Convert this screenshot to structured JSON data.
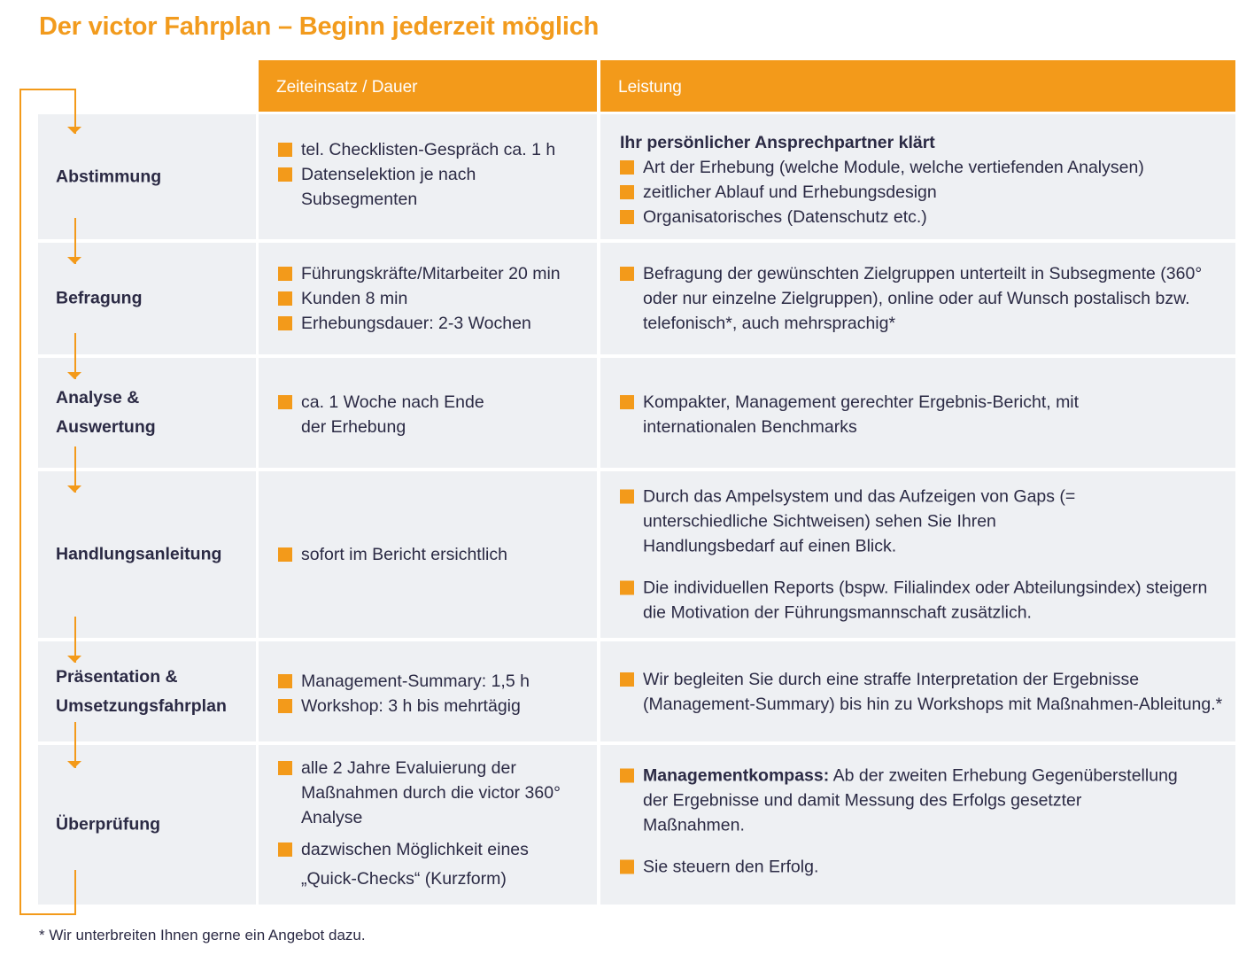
{
  "title": "Der victor Fahrplan – Beginn jederzeit möglich",
  "header": {
    "time": "Zeiteinsatz / Dauer",
    "performance": "Leistung"
  },
  "rows": [
    {
      "step": "Abstimmung",
      "time": [
        "tel. Checklisten-Gespräch ca. 1 h",
        "Datenselektion je nach Subsegmenten"
      ],
      "perf_lead": "Ihr persönlicher Ansprechpartner klärt",
      "perf": [
        "Art der Erhebung (welche Module, welche vertiefenden Analysen)",
        "zeitlicher Ablauf und Erhebungsdesign",
        "Organisatorisches (Datenschutz etc.)"
      ]
    },
    {
      "step": "Befragung",
      "time": [
        "Führungskräfte/Mitarbeiter 20 min",
        "Kunden 8 min",
        "Erhebungsdauer: 2-3 Wochen"
      ],
      "perf": [
        "Befragung der gewünschten Zielgruppen unterteilt in Subsegmente (360° oder nur einzelne Zielgruppen), online oder auf Wunsch postalisch bzw. telefonisch*, auch mehrsprachig*"
      ]
    },
    {
      "step_line1": "Analyse &",
      "step_line2": "Auswertung",
      "time": [
        "ca. 1 Woche nach Ende der Erhebung"
      ],
      "perf": [
        "Kompakter, Management gerechter Ergebnis-Bericht, mit internationalen Benchmarks"
      ]
    },
    {
      "step": "Handlungsanleitung",
      "time": [
        "sofort im Bericht ersichtlich"
      ],
      "perf": [
        "Durch das Ampelsystem und das Aufzeigen von Gaps (= unterschiedliche Sichtweisen) sehen Sie Ihren Handlungsbedarf auf einen Blick.",
        "Die individuellen Reports (bspw. Filialindex oder Abteilungsindex) steigern die Motivation der Führungsmannschaft zusätzlich."
      ]
    },
    {
      "step_line1": "Präsentation &",
      "step_line2": "Umsetzungsfahrplan",
      "time": [
        "Management-Summary: 1,5 h",
        "Workshop: 3 h bis mehrtägig"
      ],
      "perf": [
        "Wir begleiten Sie durch eine straffe Interpretation der Ergebnisse (Management-Summary) bis hin zu Workshops mit Maßnahmen-Ableitung.*"
      ]
    },
    {
      "step": "Überprüfung",
      "time": [
        "alle 2 Jahre Evaluierung der Maßnahmen durch die victor 360° Analyse",
        "dazwischen Möglichkeit eines „Quick-Checks“ (Kurzform)"
      ],
      "perf_bold": "Managementkompass:",
      "perf_rest": " Ab der zweiten Erhebung Gegenüberstellung der Ergebnisse und damit Messung des Erfolgs gesetzter Maßnahmen.",
      "perf": [
        "Sie steuern den Erfolg."
      ]
    }
  ],
  "footnote": "* Wir unterbreiten Ihnen gerne ein Angebot dazu.",
  "colors": {
    "accent": "#f39a1a",
    "cell_bg": "#eef0f3",
    "text": "#2b2a44"
  }
}
